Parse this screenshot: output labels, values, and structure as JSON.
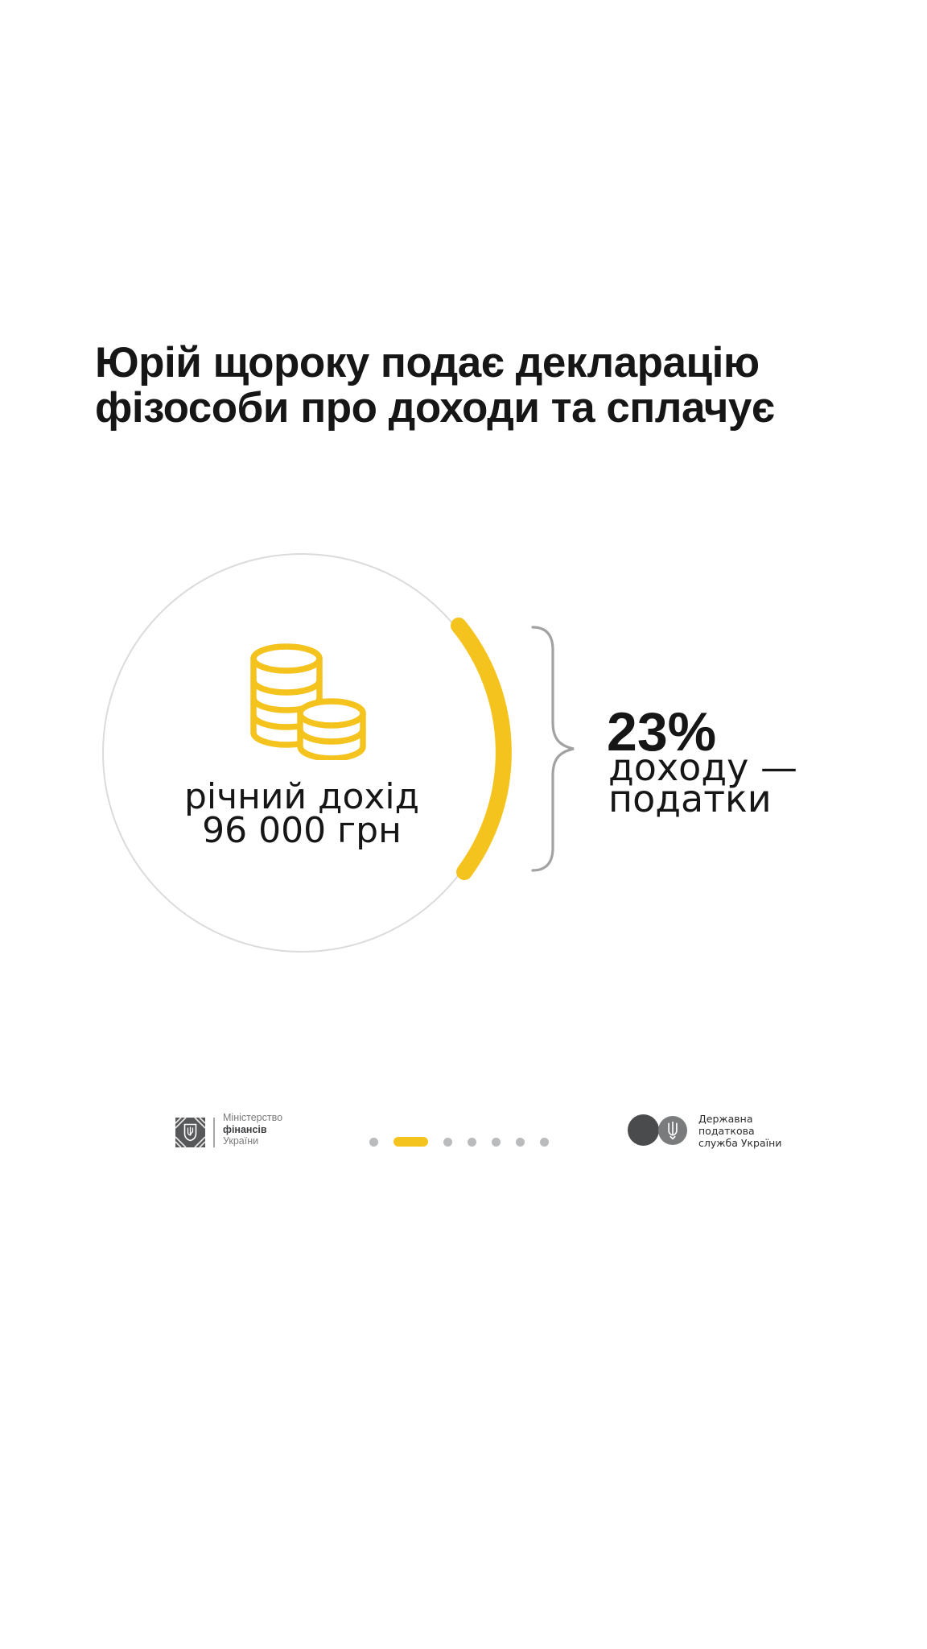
{
  "title": {
    "line1": "Юрій щороку подає декларацію",
    "line2": "фізособи про доходи та сплачує"
  },
  "income_circle": {
    "icon": "coins-icon",
    "label_line1": "річний дохід",
    "label_line2": "96 000 грн"
  },
  "tax_callout": {
    "percent": "23%",
    "line1": "доходу —",
    "line2": "податки"
  },
  "footer": {
    "minfin_logo": {
      "icon": "minfin-trident-emblem-icon",
      "line1": "Міністерство",
      "line2": "фінансів",
      "line3": "України"
    },
    "pagination": {
      "total": 7,
      "active_index": 1
    },
    "tax_service_logo": {
      "icon": "tax-service-trident-icon",
      "line1": "Державна",
      "line2": "податкова",
      "line3": "служба України"
    }
  },
  "colors": {
    "yellow": "#F5C31E",
    "text": "#161616",
    "circle_border": "#DBDBDB",
    "brace": "#A2A2A2",
    "dot": "#BABBBD",
    "minfin_square": "#57585A",
    "minfin_gray": "#797A7C",
    "minfin_dark": "#3E3F41",
    "tax_dark_circle": "#4A4B4D",
    "tax_light_circle": "#7A7B7D",
    "tax_text": "#2B2C2E",
    "divider": "#A6A7A9"
  }
}
